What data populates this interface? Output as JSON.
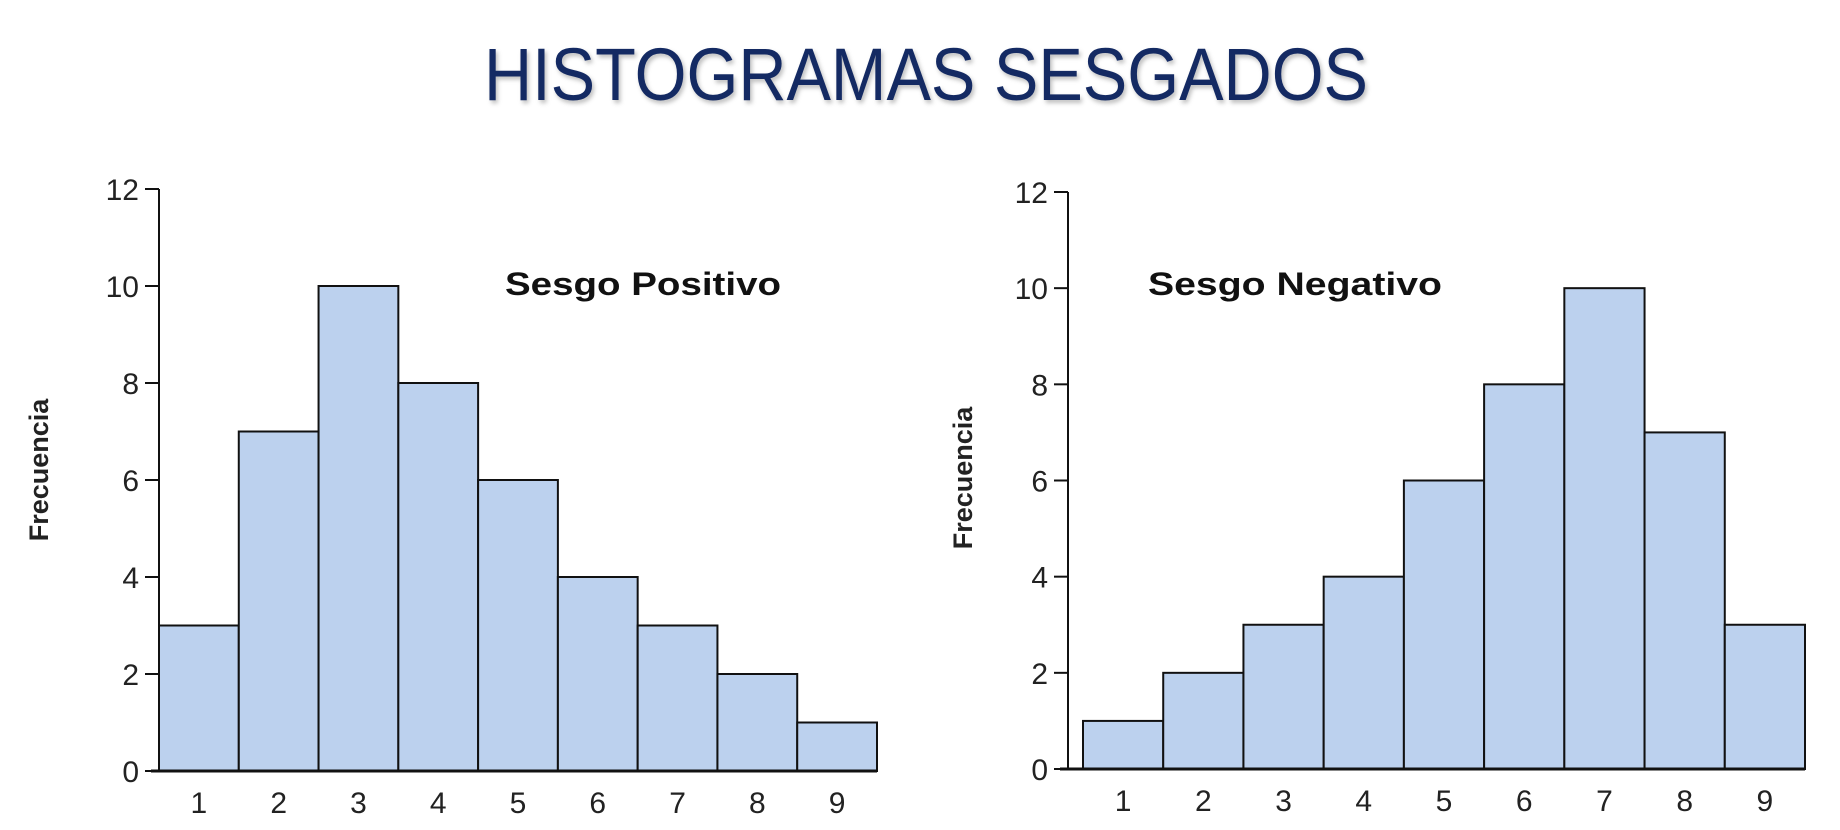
{
  "title": "HISTOGRAMAS SESGADOS",
  "colors": {
    "title": "#142a63",
    "bar_fill": "#bcd1ee",
    "bar_stroke": "#111111"
  },
  "chart_data": [
    {
      "type": "bar",
      "title": "",
      "annotation": "Sesgo Positivo",
      "xlabel": "",
      "ylabel": "Frecuencia",
      "categories": [
        "1",
        "2",
        "3",
        "4",
        "5",
        "6",
        "7",
        "8",
        "9"
      ],
      "values": [
        3,
        7,
        10,
        8,
        6,
        4,
        3,
        2,
        1
      ],
      "ylim": [
        0,
        12
      ],
      "yticks": [
        "0",
        "2",
        "4",
        "6",
        "8",
        "10",
        "12"
      ],
      "grid": false
    },
    {
      "type": "bar",
      "title": "",
      "annotation": "Sesgo Negativo",
      "xlabel": "",
      "ylabel": "Frecuencia",
      "categories": [
        "1",
        "2",
        "3",
        "4",
        "5",
        "6",
        "7",
        "8",
        "9"
      ],
      "values": [
        1,
        2,
        3,
        4,
        6,
        8,
        10,
        7,
        3
      ],
      "ylim": [
        0,
        12
      ],
      "yticks": [
        "0",
        "2",
        "4",
        "6",
        "8",
        "10",
        "12"
      ],
      "grid": false
    }
  ]
}
